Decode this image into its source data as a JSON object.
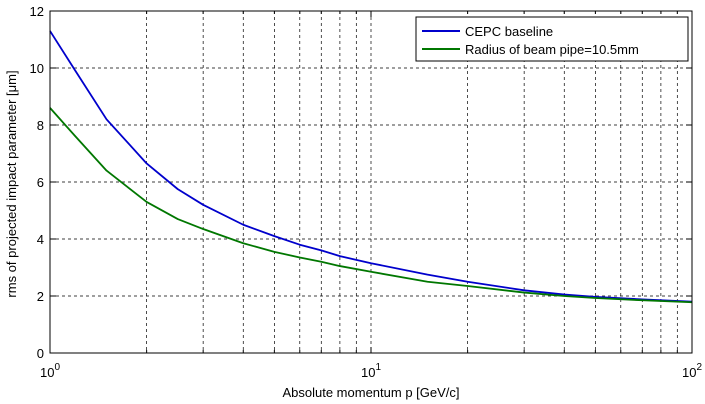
{
  "chart_data": {
    "type": "line",
    "xlabel": "Absolute momentum p [GeV/c]",
    "ylabel": "rms of projected impact parameter [μm]",
    "xscale": "log",
    "xlim": [
      1,
      100
    ],
    "ylim": [
      0,
      12
    ],
    "grid": true,
    "legend_position": "top-right",
    "y_ticks": [
      "0",
      "2",
      "4",
      "6",
      "8",
      "10",
      "12"
    ],
    "x_ticks": [
      {
        "base": "10",
        "exp": "0"
      },
      {
        "base": "10",
        "exp": "1"
      },
      {
        "base": "10",
        "exp": "2"
      }
    ],
    "series": [
      {
        "name": "CEPC baseline",
        "color": "#0000cc",
        "x": [
          1,
          1.2,
          1.5,
          2,
          2.5,
          3,
          4,
          5,
          6,
          7,
          8,
          10,
          15,
          20,
          30,
          40,
          50,
          70,
          100
        ],
        "y": [
          11.3,
          9.9,
          8.2,
          6.65,
          5.75,
          5.2,
          4.5,
          4.1,
          3.8,
          3.6,
          3.4,
          3.15,
          2.75,
          2.5,
          2.2,
          2.05,
          1.97,
          1.88,
          1.8
        ]
      },
      {
        "name": "Radius of beam pipe=10.5mm",
        "color": "#007700",
        "x": [
          1,
          1.2,
          1.5,
          2,
          2.5,
          3,
          4,
          5,
          6,
          7,
          8,
          10,
          15,
          20,
          30,
          40,
          50,
          70,
          100
        ],
        "y": [
          8.6,
          7.6,
          6.4,
          5.3,
          4.7,
          4.35,
          3.85,
          3.55,
          3.35,
          3.2,
          3.05,
          2.85,
          2.5,
          2.35,
          2.12,
          2.0,
          1.93,
          1.85,
          1.78
        ]
      }
    ]
  }
}
